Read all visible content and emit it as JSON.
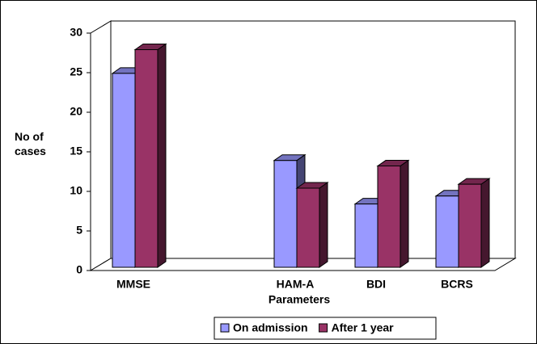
{
  "chart_data": {
    "type": "bar3d",
    "y_label": "No of cases",
    "x_label": "Parameters",
    "categories": [
      "MMSE",
      null,
      "HAM-A",
      "BDI",
      "BCRS"
    ],
    "series": [
      {
        "name": "On admission",
        "color": "#9999ff",
        "values": [
          24.5,
          null,
          13.5,
          8,
          9
        ]
      },
      {
        "name": "After 1 year",
        "color": "#993366",
        "values": [
          27.5,
          null,
          10,
          12.8,
          10.5
        ]
      }
    ],
    "ylim": [
      0,
      30
    ],
    "yticks": [
      0,
      5,
      10,
      15,
      20,
      25,
      30
    ],
    "grid": false,
    "legend": "bottom"
  }
}
